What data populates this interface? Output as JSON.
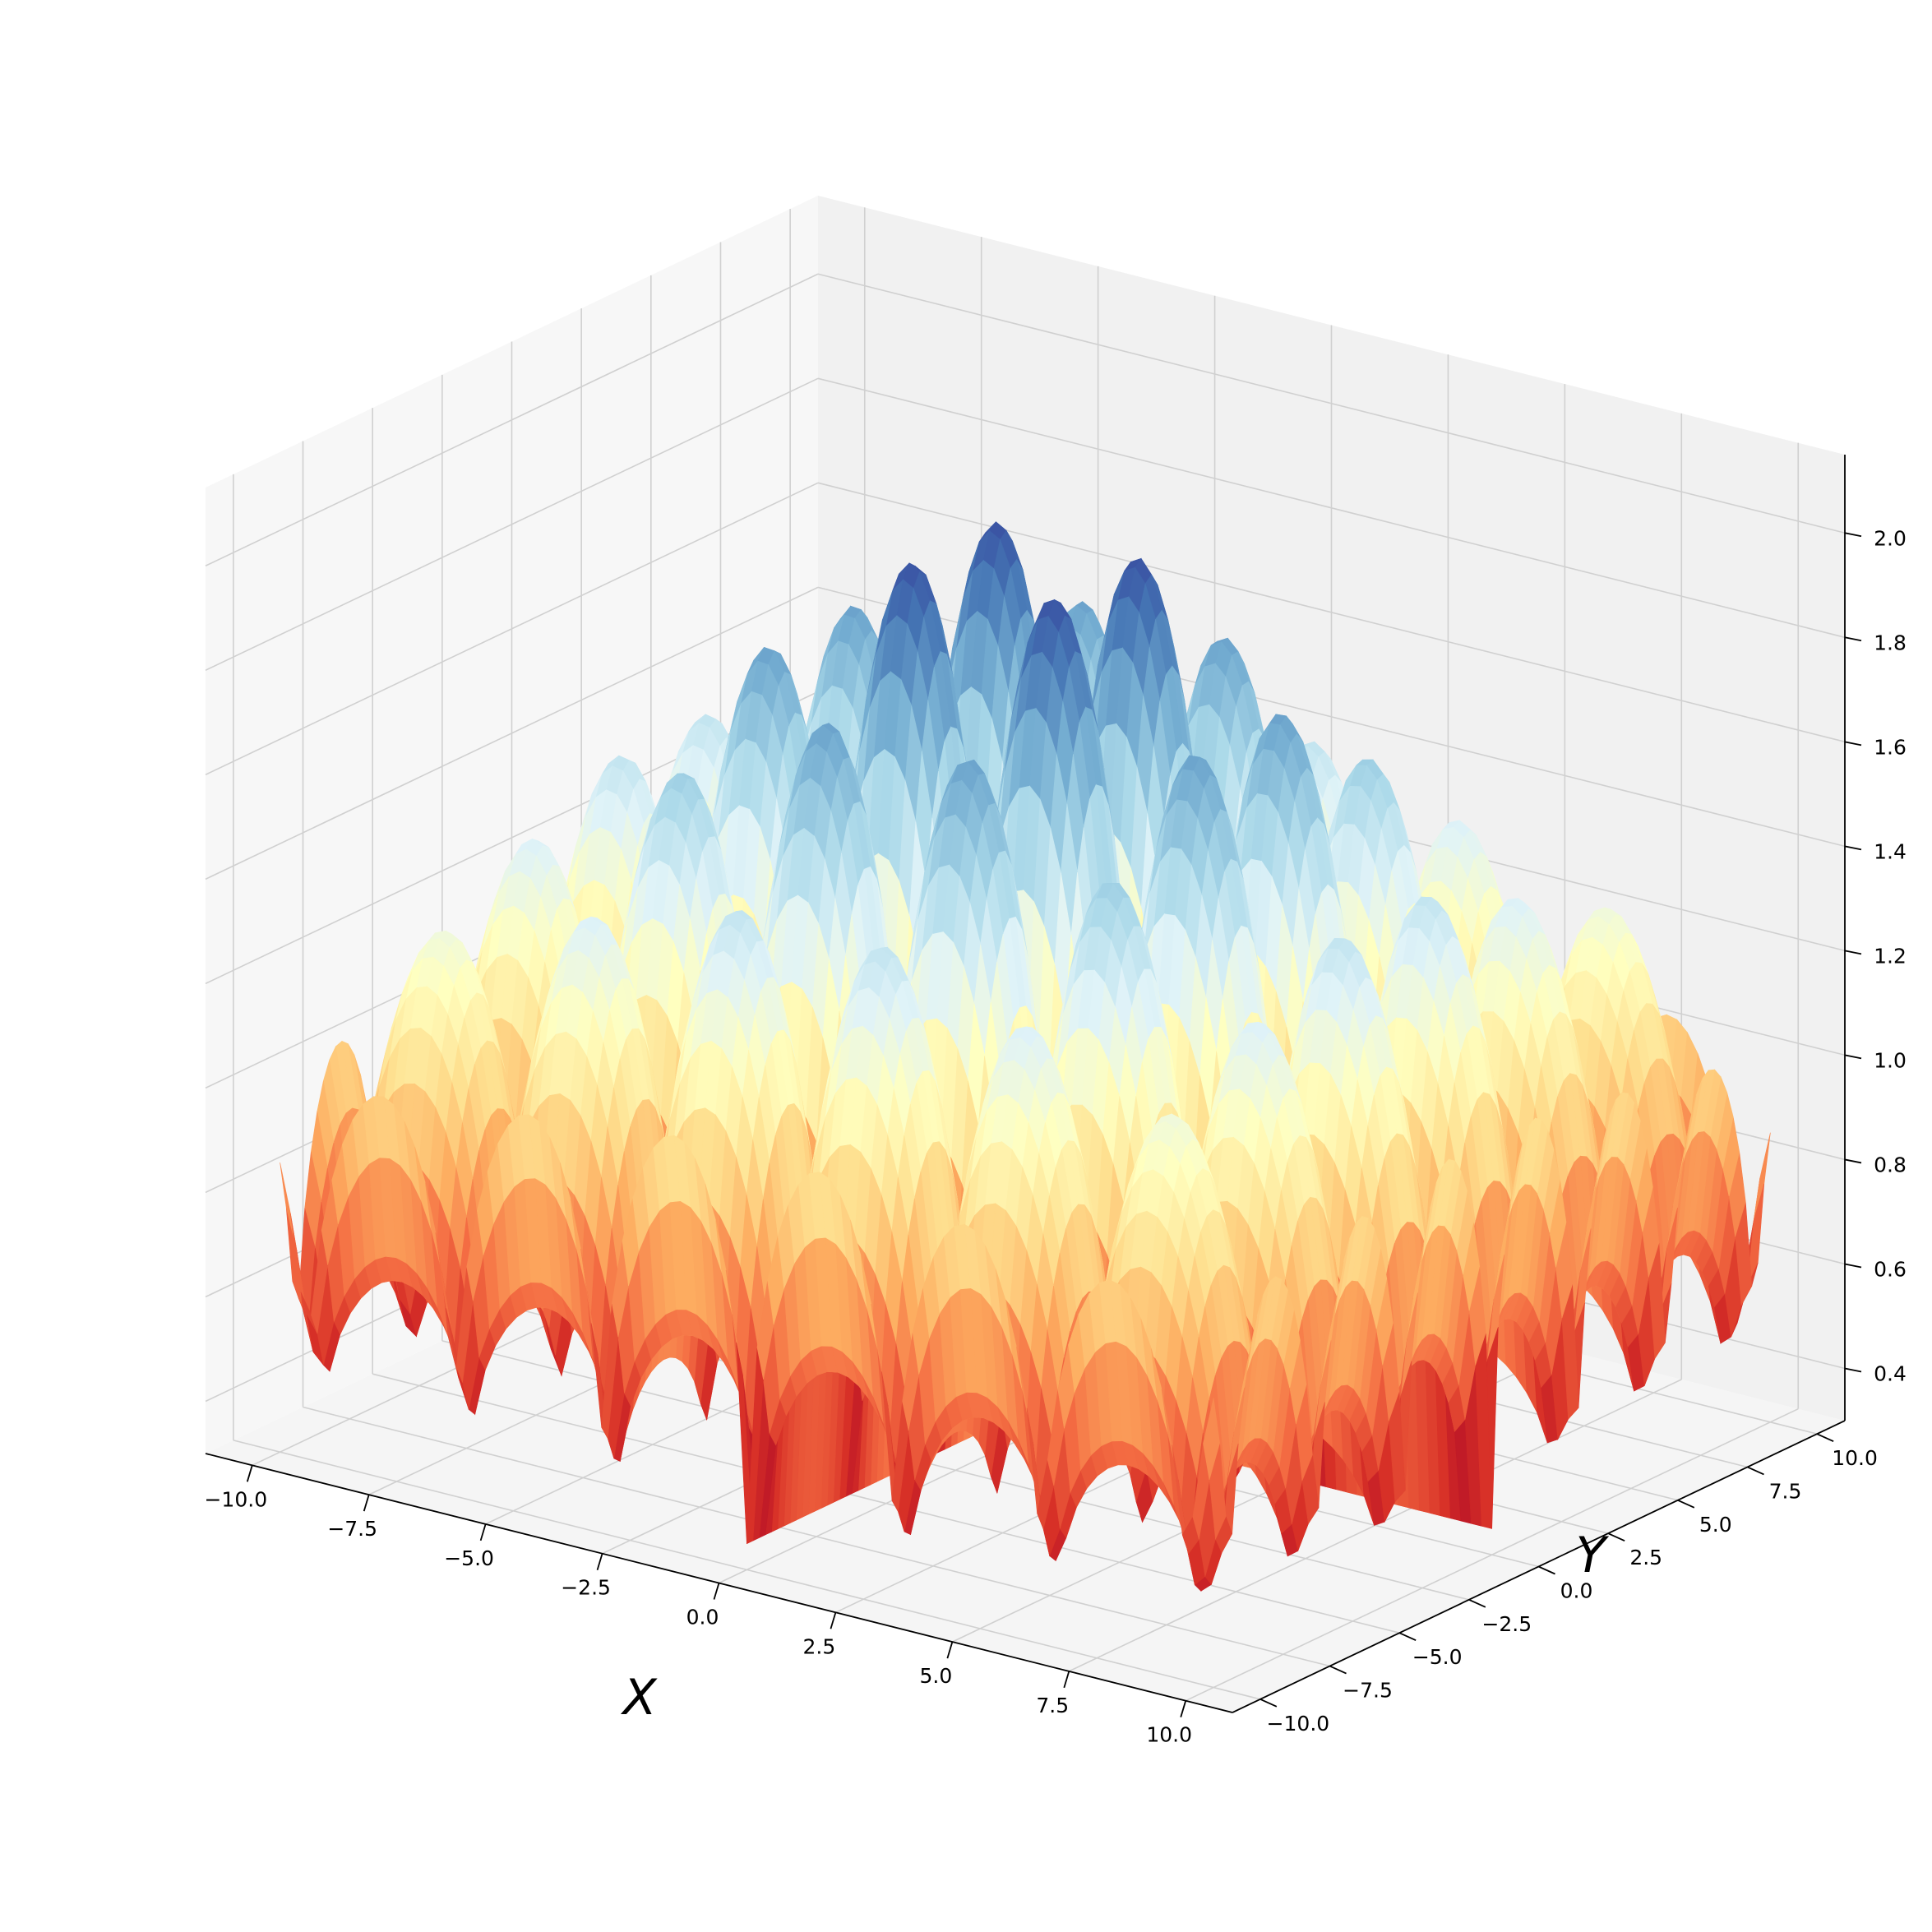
{
  "chart_data": {
    "type": "surface3d",
    "title": "",
    "xlabel": "X",
    "ylabel": "Y",
    "zlabel": "",
    "xlim": [
      -11,
      11
    ],
    "ylim": [
      -11,
      11
    ],
    "zlim": [
      0.3,
      2.15
    ],
    "x_ticks": [
      -10.0,
      -7.5,
      -5.0,
      -2.5,
      0.0,
      2.5,
      5.0,
      7.5,
      10.0
    ],
    "y_ticks": [
      -10.0,
      -7.5,
      -5.0,
      -2.5,
      0.0,
      2.5,
      5.0,
      7.5,
      10.0
    ],
    "z_ticks": [
      0.4,
      0.6,
      0.8,
      1.0,
      1.2,
      1.4,
      1.6,
      1.8,
      2.0
    ],
    "x_tick_labels": [
      "−10.0",
      "−7.5",
      "−5.0",
      "−2.5",
      "0.0",
      "2.5",
      "5.0",
      "7.5",
      "10.0"
    ],
    "y_tick_labels": [
      "−10.0",
      "−7.5",
      "−5.0",
      "−2.5",
      "0.0",
      "2.5",
      "5.0",
      "7.5",
      "10.0"
    ],
    "z_tick_labels": [
      "0.4",
      "0.6",
      "0.8",
      "1.0",
      "1.2",
      "1.4",
      "1.6",
      "1.8",
      "2.0"
    ],
    "surface": {
      "x_range": [
        -10,
        10
      ],
      "y_range": [
        -10,
        10
      ],
      "bump_period": 3.14159,
      "peak_max": 2.05,
      "peak_min": 1.2,
      "trough_min": 0.35
    },
    "colormap": [
      "#a50026",
      "#d73027",
      "#f46d43",
      "#fdae61",
      "#fee090",
      "#ffffbf",
      "#e0f3f8",
      "#abd9e9",
      "#74add1",
      "#4575b4",
      "#313695"
    ],
    "grid": true
  }
}
